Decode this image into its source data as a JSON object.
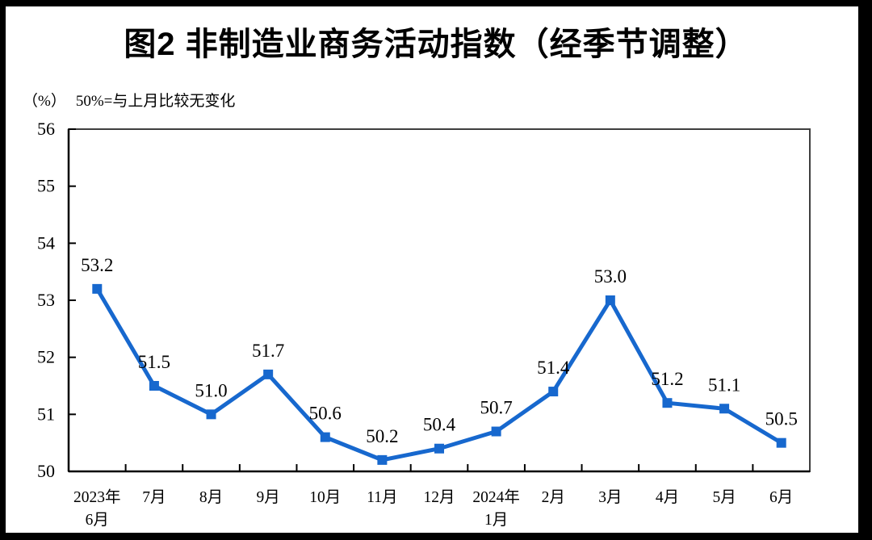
{
  "header": {
    "figure_label": "图2 非制造业商务活动指数（经季节调整）"
  },
  "chart_data": {
    "type": "line",
    "title": "图2 非制造业商务活动指数（经季节调整）",
    "unit_label": "（%）",
    "annotation": "50%=与上月比较无变化",
    "categories": [
      "2023年6月",
      "7月",
      "8月",
      "9月",
      "10月",
      "11月",
      "12月",
      "2024年1月",
      "2月",
      "3月",
      "4月",
      "5月",
      "6月"
    ],
    "category_display_lines": [
      [
        "2023年",
        "6月"
      ],
      [
        "7月"
      ],
      [
        "8月"
      ],
      [
        "9月"
      ],
      [
        "10月"
      ],
      [
        "11月"
      ],
      [
        "12月"
      ],
      [
        "2024年",
        "1月"
      ],
      [
        "2月"
      ],
      [
        "3月"
      ],
      [
        "4月"
      ],
      [
        "5月"
      ],
      [
        "6月"
      ]
    ],
    "values": [
      53.2,
      51.5,
      51.0,
      51.7,
      50.6,
      50.2,
      50.4,
      50.7,
      51.4,
      53.0,
      51.2,
      51.1,
      50.5
    ],
    "data_label_texts": [
      "53.2",
      "51.5",
      "51.0",
      "51.7",
      "50.6",
      "50.2",
      "50.4",
      "50.7",
      "51.4",
      "53.0",
      "51.2",
      "51.1",
      "50.5"
    ],
    "ylim": [
      50,
      56
    ],
    "yticks": [
      50,
      51,
      52,
      53,
      54,
      55,
      56
    ],
    "ytick_labels": [
      "50",
      "51",
      "52",
      "53",
      "54",
      "55",
      "56"
    ],
    "grid": false,
    "legend": "none",
    "data_labels": true,
    "line_color": "#1768CE",
    "marker": "square",
    "marker_color": "#1768CE",
    "axis_color": "#000000",
    "plot_border_color": "#3f3f3f",
    "text_color": "#000000",
    "frame_color": "#000000"
  }
}
